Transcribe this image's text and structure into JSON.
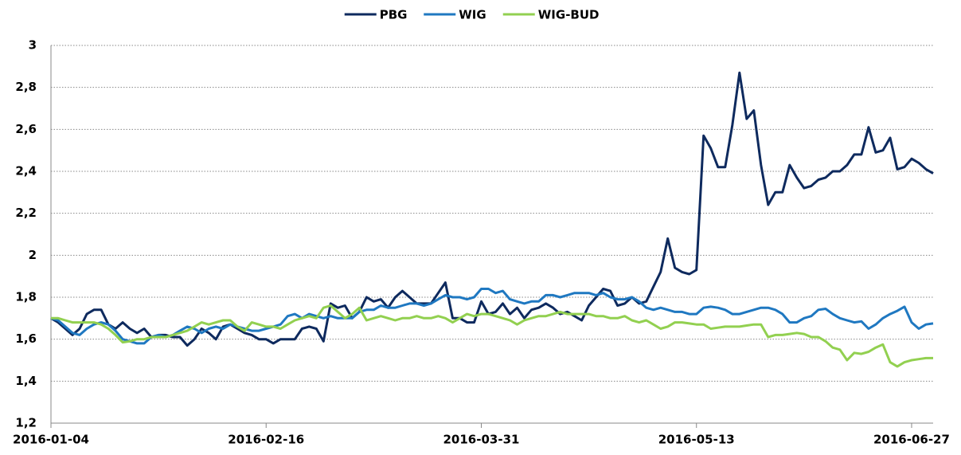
{
  "chart_data": {
    "type": "line",
    "categories": [
      "2016-01-04",
      null,
      null,
      null,
      null,
      null,
      null,
      null,
      null,
      null,
      null,
      null,
      null,
      null,
      null,
      null,
      null,
      null,
      null,
      null,
      null,
      null,
      null,
      null,
      null,
      null,
      null,
      null,
      null,
      null,
      "2016-02-16",
      null,
      null,
      null,
      null,
      null,
      null,
      null,
      null,
      null,
      null,
      null,
      null,
      null,
      null,
      null,
      null,
      null,
      null,
      null,
      null,
      null,
      null,
      null,
      null,
      null,
      null,
      null,
      null,
      null,
      "2016-03-31",
      null,
      null,
      null,
      null,
      null,
      null,
      null,
      null,
      null,
      null,
      null,
      null,
      null,
      null,
      null,
      null,
      null,
      null,
      null,
      null,
      null,
      null,
      null,
      null,
      null,
      null,
      null,
      null,
      null,
      "2016-05-13",
      null,
      null,
      null,
      null,
      null,
      null,
      null,
      null,
      null,
      null,
      null,
      null,
      null,
      null,
      null,
      null,
      null,
      null,
      null,
      null,
      null,
      null,
      null,
      null,
      null,
      null,
      null,
      null,
      null,
      "2016-06-27",
      null,
      null,
      null
    ],
    "series": [
      {
        "name": "PBG",
        "color": "#0e2a5e",
        "values": [
          1.7,
          1.68,
          1.65,
          1.62,
          1.65,
          1.72,
          1.74,
          1.74,
          1.67,
          1.65,
          1.68,
          1.65,
          1.63,
          1.65,
          1.61,
          1.62,
          1.62,
          1.61,
          1.61,
          1.57,
          1.6,
          1.65,
          1.63,
          1.6,
          1.66,
          1.67,
          1.65,
          1.63,
          1.62,
          1.6,
          1.6,
          1.58,
          1.6,
          1.6,
          1.6,
          1.65,
          1.66,
          1.65,
          1.59,
          1.77,
          1.75,
          1.76,
          1.7,
          1.73,
          1.8,
          1.78,
          1.79,
          1.75,
          1.8,
          1.83,
          1.8,
          1.77,
          1.77,
          1.77,
          1.82,
          1.87,
          1.7,
          1.7,
          1.68,
          1.68,
          1.78,
          1.72,
          1.73,
          1.77,
          1.72,
          1.75,
          1.7,
          1.74,
          1.75,
          1.77,
          1.75,
          1.72,
          1.73,
          1.71,
          1.69,
          1.76,
          1.8,
          1.84,
          1.83,
          1.76,
          1.77,
          1.8,
          1.77,
          1.78,
          1.85,
          1.92,
          2.08,
          1.94,
          1.92,
          1.91,
          1.93,
          2.57,
          2.51,
          2.42,
          2.42,
          2.62,
          2.87,
          2.65,
          2.69,
          2.43,
          2.24,
          2.3,
          2.3,
          2.43,
          2.37,
          2.32,
          2.33,
          2.36,
          2.37,
          2.4,
          2.4,
          2.43,
          2.48,
          2.48,
          2.61,
          2.49,
          2.5,
          2.56,
          2.41,
          2.42,
          2.46,
          2.44,
          2.41,
          2.39
        ]
      },
      {
        "name": "WIG",
        "color": "#1f78c1",
        "values": [
          1.7,
          1.69,
          1.66,
          1.63,
          1.62,
          1.65,
          1.67,
          1.68,
          1.67,
          1.64,
          1.6,
          1.59,
          1.58,
          1.58,
          1.61,
          1.62,
          1.61,
          1.62,
          1.64,
          1.66,
          1.65,
          1.63,
          1.65,
          1.66,
          1.65,
          1.67,
          1.66,
          1.65,
          1.64,
          1.64,
          1.65,
          1.66,
          1.67,
          1.71,
          1.72,
          1.7,
          1.72,
          1.71,
          1.7,
          1.71,
          1.7,
          1.7,
          1.7,
          1.73,
          1.74,
          1.74,
          1.76,
          1.75,
          1.75,
          1.76,
          1.77,
          1.77,
          1.76,
          1.77,
          1.79,
          1.81,
          1.8,
          1.8,
          1.79,
          1.8,
          1.84,
          1.84,
          1.82,
          1.83,
          1.79,
          1.78,
          1.77,
          1.78,
          1.78,
          1.81,
          1.81,
          1.8,
          1.81,
          1.82,
          1.82,
          1.82,
          1.81,
          1.82,
          1.8,
          1.79,
          1.79,
          1.8,
          1.78,
          1.75,
          1.74,
          1.75,
          1.74,
          1.73,
          1.73,
          1.72,
          1.72,
          1.75,
          1.755,
          1.75,
          1.74,
          1.72,
          1.72,
          1.73,
          1.74,
          1.75,
          1.75,
          1.74,
          1.72,
          1.68,
          1.68,
          1.7,
          1.71,
          1.74,
          1.745,
          1.72,
          1.7,
          1.69,
          1.68,
          1.685,
          1.65,
          1.67,
          1.7,
          1.72,
          1.735,
          1.755,
          1.68,
          1.65,
          1.67,
          1.675
        ]
      },
      {
        "name": "WIG-BUD",
        "color": "#92d050",
        "values": [
          1.7,
          1.7,
          1.69,
          1.68,
          1.68,
          1.68,
          1.68,
          1.67,
          1.65,
          1.62,
          1.585,
          1.59,
          1.6,
          1.6,
          1.61,
          1.61,
          1.61,
          1.62,
          1.63,
          1.64,
          1.66,
          1.68,
          1.67,
          1.68,
          1.69,
          1.69,
          1.66,
          1.64,
          1.68,
          1.67,
          1.66,
          1.66,
          1.65,
          1.67,
          1.69,
          1.7,
          1.71,
          1.7,
          1.75,
          1.76,
          1.73,
          1.7,
          1.72,
          1.75,
          1.69,
          1.7,
          1.71,
          1.7,
          1.69,
          1.7,
          1.7,
          1.71,
          1.7,
          1.7,
          1.71,
          1.7,
          1.68,
          1.7,
          1.72,
          1.71,
          1.72,
          1.72,
          1.71,
          1.7,
          1.69,
          1.67,
          1.69,
          1.7,
          1.71,
          1.71,
          1.72,
          1.73,
          1.72,
          1.72,
          1.72,
          1.72,
          1.71,
          1.71,
          1.7,
          1.7,
          1.71,
          1.69,
          1.68,
          1.69,
          1.67,
          1.65,
          1.66,
          1.68,
          1.68,
          1.675,
          1.67,
          1.67,
          1.65,
          1.655,
          1.66,
          1.66,
          1.66,
          1.665,
          1.67,
          1.67,
          1.61,
          1.62,
          1.62,
          1.625,
          1.63,
          1.625,
          1.61,
          1.61,
          1.59,
          1.56,
          1.55,
          1.5,
          1.535,
          1.53,
          1.54,
          1.56,
          1.575,
          1.49,
          1.47,
          1.49,
          1.5,
          1.505,
          1.51,
          1.51
        ]
      }
    ],
    "ylim": [
      1.2,
      3
    ],
    "yticks": [
      {
        "value": 1.2,
        "label": "1,2"
      },
      {
        "value": 1.4,
        "label": "1,4"
      },
      {
        "value": 1.6,
        "label": "1,6"
      },
      {
        "value": 1.8,
        "label": "1,8"
      },
      2,
      {
        "value": 2.2,
        "label": "2,2"
      },
      {
        "value": 2.4,
        "label": "2,4"
      },
      {
        "value": 2.6,
        "label": "2,6"
      },
      {
        "value": 2.8,
        "label": "2,8"
      },
      3
    ],
    "grid": true,
    "legend": "top"
  }
}
